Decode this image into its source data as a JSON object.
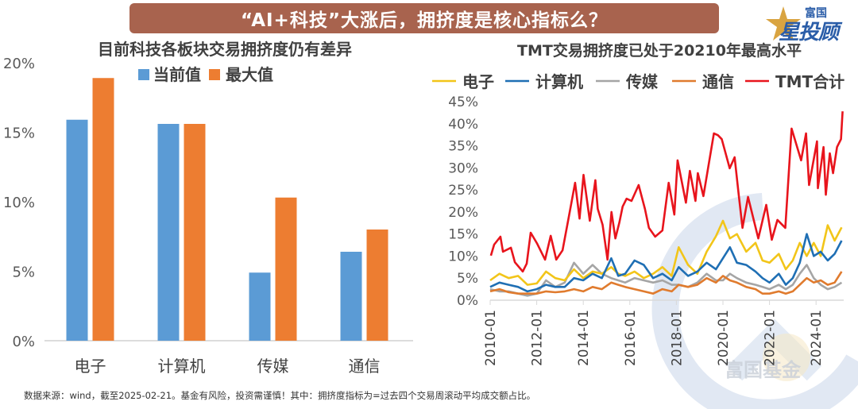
{
  "header": {
    "title": "“AI+科技”大涨后，拥挤度是核心指标么？",
    "logo_small": "富国",
    "logo_big": "星投顾"
  },
  "watermark": {
    "text": "富国基金"
  },
  "footer": {
    "text": "数据来源：wind，截至2025-02-21。基金有风险，投资需谨慎！其中：拥挤度指标为=过去四个交易周滚动平均成交额占比。"
  },
  "colors": {
    "title_bg": "#a8634e",
    "current": "#5b9bd5",
    "max": "#ed7d31",
    "electronics": "#f2c519",
    "computer": "#1f6fb4",
    "media": "#a5a5a5",
    "telecom": "#e07b2e",
    "tmt_total": "#e8141c"
  },
  "chart_data": [
    {
      "type": "bar",
      "title": "目前科技各板块交易拥挤度仍有差异",
      "categories": [
        "电子",
        "计算机",
        "传媒",
        "通信"
      ],
      "series": [
        {
          "name": "当前值",
          "values": [
            15.9,
            15.6,
            4.9,
            6.4
          ]
        },
        {
          "name": "最大值",
          "values": [
            18.9,
            15.6,
            10.3,
            8.0
          ]
        }
      ],
      "yticks": [
        "0%",
        "5%",
        "10%",
        "15%",
        "20%"
      ],
      "ylim": [
        0,
        20
      ],
      "xlabel": "",
      "ylabel": "",
      "legend": "top"
    },
    {
      "type": "line",
      "title": "TMT交易拥挤度已处于20210年最高水平",
      "xticks": [
        "2010-01",
        "2012-01",
        "2014-01",
        "2016-01",
        "2018-01",
        "2020-01",
        "2022-01",
        "2024-01"
      ],
      "yticks": [
        "0%",
        "5%",
        "10%",
        "15%",
        "20%",
        "25%",
        "30%",
        "35%",
        "40%",
        "45%"
      ],
      "ylim": [
        0,
        45
      ],
      "xlim": [
        2010.0,
        2025.2
      ],
      "legend": "top",
      "series": [
        {
          "name": "电子",
          "x": [
            2010.0,
            2010.4,
            2010.8,
            2011.2,
            2011.6,
            2012.0,
            2012.4,
            2012.8,
            2013.2,
            2013.6,
            2014.0,
            2014.4,
            2014.8,
            2015.2,
            2015.5,
            2015.8,
            2016.2,
            2016.6,
            2017.0,
            2017.4,
            2017.8,
            2018.1,
            2018.5,
            2018.9,
            2019.3,
            2019.7,
            2020.0,
            2020.3,
            2020.6,
            2021.0,
            2021.4,
            2021.7,
            2022.0,
            2022.4,
            2022.7,
            2023.0,
            2023.3,
            2023.6,
            2023.9,
            2024.2,
            2024.5,
            2024.8,
            2025.1
          ],
          "y": [
            4.5,
            6.0,
            5.0,
            5.5,
            3.5,
            3.8,
            6.5,
            5.0,
            4.5,
            7.0,
            5.0,
            6.5,
            6.0,
            7.5,
            6.0,
            5.5,
            6.5,
            5.0,
            6.0,
            7.5,
            5.5,
            12.0,
            8.0,
            6.0,
            11.0,
            14.5,
            18.0,
            14.0,
            15.0,
            11.0,
            13.0,
            9.0,
            8.5,
            10.5,
            7.0,
            9.0,
            13.0,
            10.0,
            13.0,
            10.0,
            17.0,
            13.5,
            16.5
          ]
        },
        {
          "name": "计算机",
          "x": [
            2010.0,
            2010.4,
            2010.8,
            2011.2,
            2011.6,
            2012.0,
            2012.4,
            2012.8,
            2013.2,
            2013.6,
            2014.0,
            2014.4,
            2014.8,
            2015.2,
            2015.5,
            2015.8,
            2016.2,
            2016.6,
            2017.0,
            2017.4,
            2017.8,
            2018.1,
            2018.5,
            2018.9,
            2019.3,
            2019.7,
            2020.0,
            2020.3,
            2020.6,
            2021.0,
            2021.4,
            2021.7,
            2022.0,
            2022.4,
            2022.7,
            2023.0,
            2023.3,
            2023.6,
            2023.9,
            2024.2,
            2024.5,
            2024.8,
            2025.1
          ],
          "y": [
            3.0,
            4.0,
            3.5,
            3.0,
            2.0,
            2.5,
            3.5,
            3.0,
            3.0,
            5.0,
            4.5,
            6.0,
            5.0,
            9.5,
            5.5,
            6.0,
            9.0,
            8.0,
            5.0,
            6.0,
            4.5,
            7.5,
            5.5,
            6.5,
            8.5,
            7.0,
            9.5,
            12.0,
            8.5,
            8.0,
            6.5,
            5.0,
            4.0,
            6.0,
            3.5,
            5.0,
            8.5,
            15.0,
            10.0,
            11.0,
            9.0,
            10.5,
            13.5
          ]
        },
        {
          "name": "传媒",
          "x": [
            2010.0,
            2010.4,
            2010.8,
            2011.2,
            2011.6,
            2012.0,
            2012.4,
            2012.8,
            2013.2,
            2013.6,
            2014.0,
            2014.4,
            2014.8,
            2015.2,
            2015.5,
            2015.8,
            2016.2,
            2016.6,
            2017.0,
            2017.4,
            2017.8,
            2018.1,
            2018.5,
            2018.9,
            2019.3,
            2019.7,
            2020.0,
            2020.3,
            2020.6,
            2021.0,
            2021.4,
            2021.7,
            2022.0,
            2022.4,
            2022.7,
            2023.0,
            2023.3,
            2023.6,
            2023.9,
            2024.2,
            2024.5,
            2024.8,
            2025.1
          ],
          "y": [
            2.5,
            2.0,
            2.0,
            1.5,
            1.0,
            1.5,
            4.5,
            3.0,
            4.0,
            8.5,
            6.0,
            8.0,
            6.0,
            5.0,
            4.5,
            4.0,
            5.0,
            4.5,
            4.0,
            4.5,
            3.5,
            3.5,
            3.0,
            4.0,
            6.0,
            4.5,
            4.5,
            6.0,
            5.0,
            4.0,
            3.5,
            3.0,
            2.5,
            3.5,
            2.5,
            3.5,
            6.0,
            8.0,
            5.0,
            3.5,
            2.5,
            3.0,
            4.0
          ]
        },
        {
          "name": "通信",
          "x": [
            2010.0,
            2010.4,
            2010.8,
            2011.2,
            2011.6,
            2012.0,
            2012.4,
            2012.8,
            2013.2,
            2013.6,
            2014.0,
            2014.4,
            2014.8,
            2015.2,
            2015.5,
            2015.8,
            2016.2,
            2016.6,
            2017.0,
            2017.4,
            2017.8,
            2018.1,
            2018.5,
            2018.9,
            2019.3,
            2019.7,
            2020.0,
            2020.3,
            2020.6,
            2021.0,
            2021.4,
            2021.7,
            2022.0,
            2022.4,
            2022.7,
            2023.0,
            2023.3,
            2023.6,
            2023.9,
            2024.2,
            2024.5,
            2024.8,
            2025.1
          ],
          "y": [
            2.0,
            2.5,
            1.8,
            1.5,
            1.5,
            1.5,
            2.0,
            1.8,
            2.0,
            2.5,
            2.0,
            3.0,
            2.5,
            4.0,
            3.5,
            3.0,
            2.5,
            2.0,
            1.5,
            2.5,
            2.0,
            3.5,
            3.0,
            3.5,
            5.0,
            4.0,
            5.5,
            4.5,
            4.0,
            3.0,
            2.5,
            1.5,
            1.5,
            2.0,
            1.5,
            2.0,
            3.5,
            5.0,
            4.0,
            4.5,
            3.5,
            4.0,
            6.5
          ]
        },
        {
          "name": "TMT合计",
          "x": [
            2010.03,
            2010.17,
            2010.44,
            2010.55,
            2010.89,
            2011.06,
            2011.4,
            2011.57,
            2011.74,
            2012.02,
            2012.36,
            2012.6,
            2012.84,
            2013.11,
            2013.38,
            2013.65,
            2013.84,
            2014.01,
            2014.28,
            2014.52,
            2014.62,
            2014.83,
            2015.04,
            2015.21,
            2015.38,
            2015.55,
            2015.69,
            2015.86,
            2016.07,
            2016.38,
            2016.65,
            2016.82,
            2017.09,
            2017.4,
            2017.67,
            2017.91,
            2018.05,
            2018.41,
            2018.58,
            2018.82,
            2018.92,
            2019.16,
            2019.34,
            2019.61,
            2019.78,
            2019.95,
            2020.29,
            2020.5,
            2020.67,
            2020.84,
            2021.08,
            2021.52,
            2021.86,
            2022.1,
            2022.34,
            2022.68,
            2022.95,
            2023.36,
            2023.57,
            2023.7,
            2024.04,
            2024.08,
            2024.32,
            2024.42,
            2024.59,
            2024.73,
            2024.9,
            2025.07,
            2025.14
          ],
          "y": [
            10.1,
            12.6,
            14.4,
            11.0,
            11.9,
            8.6,
            6.5,
            8.3,
            15.3,
            12.8,
            9.2,
            14.6,
            9.2,
            11.3,
            18.9,
            26.6,
            18.5,
            28.4,
            18.0,
            27.2,
            20.7,
            17.1,
            9.2,
            20.0,
            14.0,
            17.6,
            21.2,
            23.0,
            22.5,
            26.1,
            20.7,
            16.4,
            14.4,
            15.8,
            26.6,
            19.4,
            31.7,
            22.1,
            29.3,
            22.5,
            28.8,
            23.6,
            29.3,
            37.8,
            37.4,
            36.5,
            29.9,
            32.4,
            24.3,
            16.4,
            23.4,
            14.0,
            21.6,
            13.7,
            18.2,
            16.4,
            38.9,
            31.7,
            37.8,
            26.1,
            36.0,
            25.4,
            34.7,
            23.9,
            33.3,
            28.8,
            34.7,
            36.5,
            42.8
          ]
        }
      ]
    }
  ]
}
